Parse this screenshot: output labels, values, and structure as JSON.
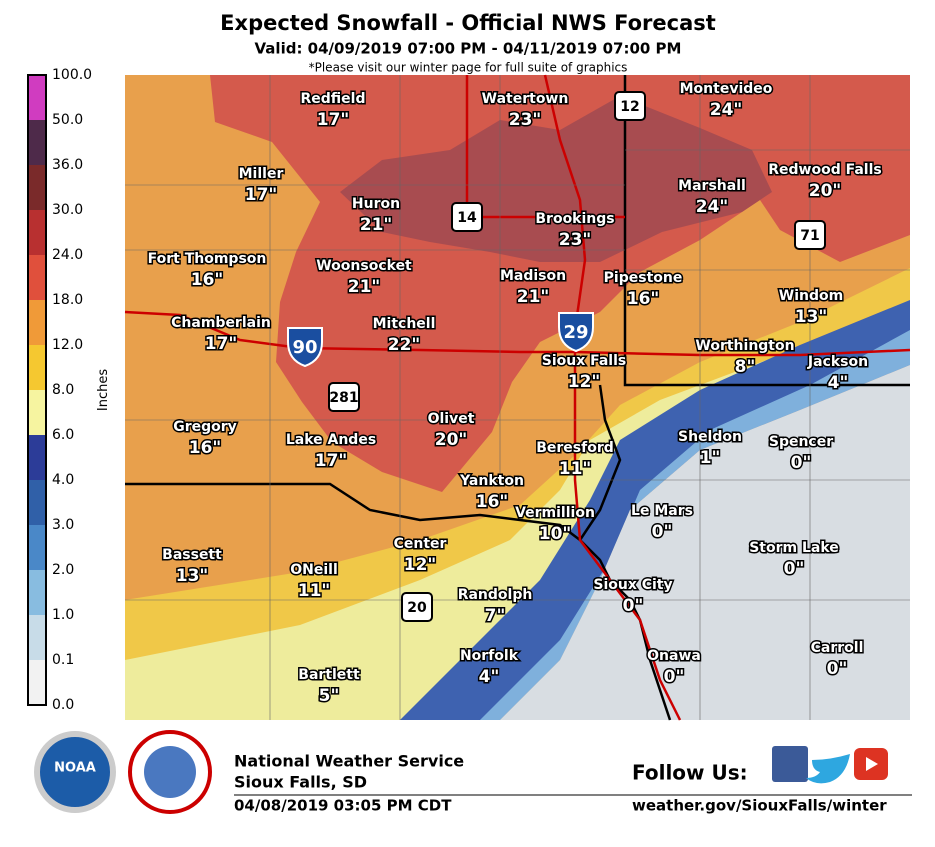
{
  "header": {
    "title": "Expected Snowfall - Official NWS Forecast",
    "valid": "Valid: 04/09/2019 07:00 PM - 04/11/2019 07:00 PM",
    "note": "*Please visit our winter page for full suite of graphics"
  },
  "legend": {
    "unit": "Inches",
    "labels": [
      "100.0",
      "50.0",
      "36.0",
      "30.0",
      "24.0",
      "18.0",
      "12.0",
      "8.0",
      "6.0",
      "4.0",
      "3.0",
      "2.0",
      "1.0",
      "0.1",
      "0.0"
    ]
  },
  "cities": [
    {
      "name": "Redfield",
      "amount": "17\""
    },
    {
      "name": "Watertown",
      "amount": "23\""
    },
    {
      "name": "Montevideo",
      "amount": "24\""
    },
    {
      "name": "Miller",
      "amount": "17\""
    },
    {
      "name": "Huron",
      "amount": "21\""
    },
    {
      "name": "Brookings",
      "amount": "23\""
    },
    {
      "name": "Marshall",
      "amount": "24\""
    },
    {
      "name": "Redwood Falls",
      "amount": "20\""
    },
    {
      "name": "Fort Thompson",
      "amount": "16\""
    },
    {
      "name": "Woonsocket",
      "amount": "21\""
    },
    {
      "name": "Madison",
      "amount": "21\""
    },
    {
      "name": "Pipestone",
      "amount": "16\""
    },
    {
      "name": "Windom",
      "amount": "13\""
    },
    {
      "name": "Chamberlain",
      "amount": "17\""
    },
    {
      "name": "Mitchell",
      "amount": "22\""
    },
    {
      "name": "Worthington",
      "amount": "8\""
    },
    {
      "name": "Sioux Falls",
      "amount": "12\""
    },
    {
      "name": "Jackson",
      "amount": "4\""
    },
    {
      "name": "Gregory",
      "amount": "16\""
    },
    {
      "name": "Olivet",
      "amount": "20\""
    },
    {
      "name": "Lake Andes",
      "amount": "17\""
    },
    {
      "name": "Beresford",
      "amount": "11\""
    },
    {
      "name": "Sheldon",
      "amount": "1\""
    },
    {
      "name": "Spencer",
      "amount": "0\""
    },
    {
      "name": "Yankton",
      "amount": "16\""
    },
    {
      "name": "Vermillion",
      "amount": "10\""
    },
    {
      "name": "Le Mars",
      "amount": "0\""
    },
    {
      "name": "Center",
      "amount": "12\""
    },
    {
      "name": "Storm Lake",
      "amount": "0\""
    },
    {
      "name": "Bassett",
      "amount": "13\""
    },
    {
      "name": "ONeill",
      "amount": "11\""
    },
    {
      "name": "Randolph",
      "amount": "7\""
    },
    {
      "name": "Sioux City",
      "amount": "0\""
    },
    {
      "name": "Norfolk",
      "amount": "4\""
    },
    {
      "name": "Onawa",
      "amount": "0\""
    },
    {
      "name": "Carroll",
      "amount": "0\""
    },
    {
      "name": "Bartlett",
      "amount": "5\""
    }
  ],
  "shields": [
    "12",
    "14",
    "90",
    "29",
    "281",
    "20",
    "71"
  ],
  "footer": {
    "logo": "NOAA",
    "office": "National Weather Service",
    "location": "Sioux Falls, SD",
    "issued": "04/08/2019 03:05 PM CDT",
    "follow": "Follow Us:",
    "url": "weather.gov/SiouxFalls/winter"
  }
}
